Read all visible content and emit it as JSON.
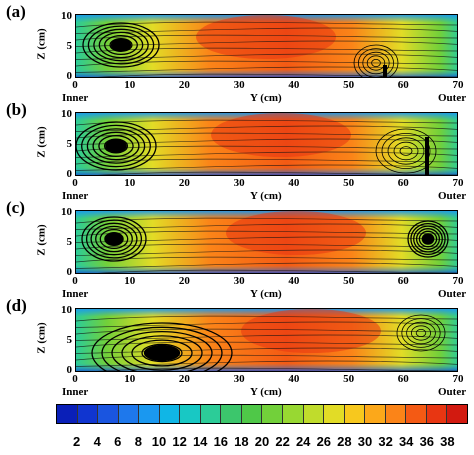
{
  "panels": [
    {
      "label": "(a)",
      "ylabel": "Z (cm)",
      "xlabel": "Y (cm)",
      "inner": "Inner",
      "outer": "Outer",
      "yticks": [
        "0",
        "5",
        "10"
      ],
      "xticks": [
        "0",
        "10",
        "20",
        "30",
        "40",
        "50",
        "60",
        "70"
      ],
      "vortex_left": "counter-rotating vortex near inner wall",
      "vortex_right": "none"
    },
    {
      "label": "(b)",
      "ylabel": "Z (cm)",
      "xlabel": "Y (cm)",
      "inner": "Inner",
      "outer": "Outer",
      "yticks": [
        "0",
        "5",
        "10"
      ],
      "xticks": [
        "0",
        "10",
        "20",
        "30",
        "40",
        "50",
        "60",
        "70"
      ]
    },
    {
      "label": "(c)",
      "ylabel": "Z (cm)",
      "xlabel": "Y (cm)",
      "inner": "Inner",
      "outer": "Outer",
      "yticks": [
        "0",
        "5",
        "10"
      ],
      "xticks": [
        "0",
        "10",
        "20",
        "30",
        "40",
        "50",
        "60",
        "70"
      ]
    },
    {
      "label": "(d)",
      "ylabel": "Z (cm)",
      "xlabel": "Y (cm)",
      "inner": "Inner",
      "outer": "Outer",
      "yticks": [
        "0",
        "5",
        "10"
      ],
      "xticks": [
        "0",
        "10",
        "20",
        "30",
        "40",
        "50",
        "60",
        "70"
      ]
    }
  ],
  "colorbar": {
    "ticks": [
      "2",
      "4",
      "6",
      "8",
      "10",
      "12",
      "14",
      "16",
      "18",
      "20",
      "22",
      "24",
      "26",
      "28",
      "30",
      "32",
      "34",
      "36",
      "38"
    ],
    "colors": [
      "#0a1fb8",
      "#1035d0",
      "#1a55e0",
      "#1e78ec",
      "#1a98f0",
      "#10b6e6",
      "#18c8c4",
      "#2ccc98",
      "#3cc66c",
      "#4fc848",
      "#72d03a",
      "#98d832",
      "#c0dc2c",
      "#e2dc26",
      "#f7c81e",
      "#fca81a",
      "#fb8418",
      "#f45a14",
      "#e83612",
      "#d21a10"
    ]
  }
}
